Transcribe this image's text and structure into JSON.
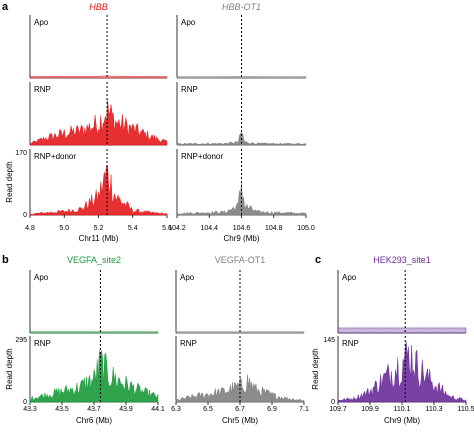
{
  "chart_data": [
    {
      "type": "area",
      "panel": "a",
      "title": "HBB",
      "color": "#e41a1c",
      "rows": [
        "Apo",
        "RNP",
        "RNP+donor"
      ],
      "ylabel": "Read depth",
      "ylim": [
        0,
        170
      ],
      "ytick_labels": [
        "0",
        "170"
      ],
      "xlabel": "Chr11 (Mb)",
      "xlim": [
        4.8,
        5.6
      ],
      "x_ticks": [
        4.8,
        5.0,
        5.2,
        5.4,
        5.6
      ],
      "x_tick_labels": [
        "4.8",
        "5.0",
        "5.2",
        "5.4",
        "5.6"
      ],
      "cut_site": 5.25,
      "series": [
        {
          "name": "Apo",
          "x": [
            4.8,
            5.0,
            5.2,
            5.25,
            5.3,
            5.4,
            5.6
          ],
          "y": [
            4,
            5,
            5,
            6,
            5,
            5,
            4
          ]
        },
        {
          "name": "RNP",
          "x": [
            4.8,
            4.9,
            5.0,
            5.1,
            5.2,
            5.25,
            5.3,
            5.4,
            5.5,
            5.6
          ],
          "y": [
            5,
            25,
            40,
            50,
            75,
            120,
            80,
            55,
            30,
            10
          ]
        },
        {
          "name": "RNP+donor",
          "x": [
            4.8,
            4.9,
            5.0,
            5.1,
            5.2,
            5.25,
            5.3,
            5.4,
            5.5,
            5.6
          ],
          "y": [
            3,
            8,
            12,
            20,
            60,
            140,
            60,
            15,
            8,
            4
          ]
        }
      ]
    },
    {
      "type": "area",
      "panel": "a",
      "title": "HBB-OT1",
      "color": "#808080",
      "rows": [
        "Apo",
        "RNP",
        "RNP+donor"
      ],
      "xlabel": "Chr9 (Mb)",
      "xlim": [
        104.2,
        105.0
      ],
      "x_ticks": [
        104.2,
        104.4,
        104.6,
        104.8,
        105.0
      ],
      "x_tick_labels": [
        "104.2",
        "104.4",
        "104.6",
        "104.8",
        "105.0"
      ],
      "cut_site": 104.6,
      "series": [
        {
          "name": "Apo",
          "x": [
            104.2,
            104.4,
            104.6,
            104.8,
            105.0
          ],
          "y": [
            4,
            4,
            5,
            4,
            4
          ]
        },
        {
          "name": "RNP",
          "x": [
            104.2,
            104.5,
            104.58,
            104.6,
            104.62,
            104.7,
            105.0
          ],
          "y": [
            4,
            5,
            10,
            45,
            10,
            5,
            4
          ]
        },
        {
          "name": "RNP+donor",
          "x": [
            104.2,
            104.5,
            104.58,
            104.6,
            104.62,
            104.7,
            105.0
          ],
          "y": [
            5,
            10,
            30,
            110,
            30,
            10,
            5
          ]
        }
      ]
    },
    {
      "type": "area",
      "panel": "b",
      "title": "VEGFA_site2",
      "color": "#1a9a3a",
      "rows": [
        "Apo",
        "RNP"
      ],
      "ylabel": "Read depth",
      "ylim": [
        0,
        295
      ],
      "ytick_labels": [
        "0",
        "295"
      ],
      "xlabel": "Chr6 (Mb)",
      "xlim": [
        43.3,
        44.1
      ],
      "x_ticks": [
        43.3,
        43.5,
        43.7,
        43.9,
        44.1
      ],
      "x_tick_labels": [
        "43.3",
        "43.5",
        "43.7",
        "43.9",
        "44.1"
      ],
      "cut_site": 43.74,
      "series": [
        {
          "name": "Apo",
          "x": [
            43.3,
            43.7,
            44.1
          ],
          "y": [
            6,
            6,
            6
          ]
        },
        {
          "name": "RNP",
          "x": [
            43.3,
            43.4,
            43.5,
            43.6,
            43.7,
            43.74,
            43.8,
            43.9,
            44.0,
            44.1
          ],
          "y": [
            20,
            40,
            60,
            80,
            130,
            220,
            150,
            100,
            60,
            30
          ]
        }
      ]
    },
    {
      "type": "area",
      "panel": "b",
      "title": "VEGFA-OT1",
      "color": "#808080",
      "rows": [
        "Apo",
        "RNP"
      ],
      "xlabel": "Chr5 (Mb)",
      "xlim": [
        6.3,
        7.1
      ],
      "x_ticks": [
        6.3,
        6.5,
        6.7,
        6.9,
        7.1
      ],
      "x_tick_labels": [
        "6.3",
        "6.5",
        "6.7",
        "6.9",
        "7.1"
      ],
      "cut_site": 6.7,
      "series": [
        {
          "name": "Apo",
          "x": [
            6.3,
            6.7,
            7.1
          ],
          "y": [
            6,
            6,
            6
          ]
        },
        {
          "name": "RNP",
          "x": [
            6.3,
            6.4,
            6.5,
            6.6,
            6.7,
            6.75,
            6.8,
            6.9,
            7.0,
            7.1
          ],
          "y": [
            10,
            30,
            45,
            60,
            90,
            120,
            70,
            40,
            20,
            10
          ]
        }
      ]
    },
    {
      "type": "area",
      "panel": "c",
      "title": "HEK293_site1",
      "color": "#6a2c9a",
      "rows": [
        "Apo",
        "RNP"
      ],
      "ylabel": "Read depth",
      "ylim": [
        0,
        145
      ],
      "ytick_labels": [
        "0",
        "145"
      ],
      "xlabel": "Chr9 (Mb)",
      "xlim": [
        109.7,
        110.5
      ],
      "x_ticks": [
        109.7,
        109.9,
        110.1,
        110.3,
        110.5
      ],
      "x_tick_labels": [
        "109.7",
        "109.9",
        "110.1",
        "110.3",
        "110.5"
      ],
      "cut_site": 110.12,
      "series": [
        {
          "name": "Apo",
          "x": [
            109.7,
            110.1,
            110.5
          ],
          "y": [
            12,
            12,
            12
          ]
        },
        {
          "name": "RNP",
          "x": [
            109.7,
            109.8,
            109.9,
            110.0,
            110.1,
            110.15,
            110.2,
            110.3,
            110.4,
            110.5
          ],
          "y": [
            5,
            10,
            30,
            70,
            110,
            135,
            95,
            50,
            15,
            5
          ]
        }
      ]
    }
  ]
}
